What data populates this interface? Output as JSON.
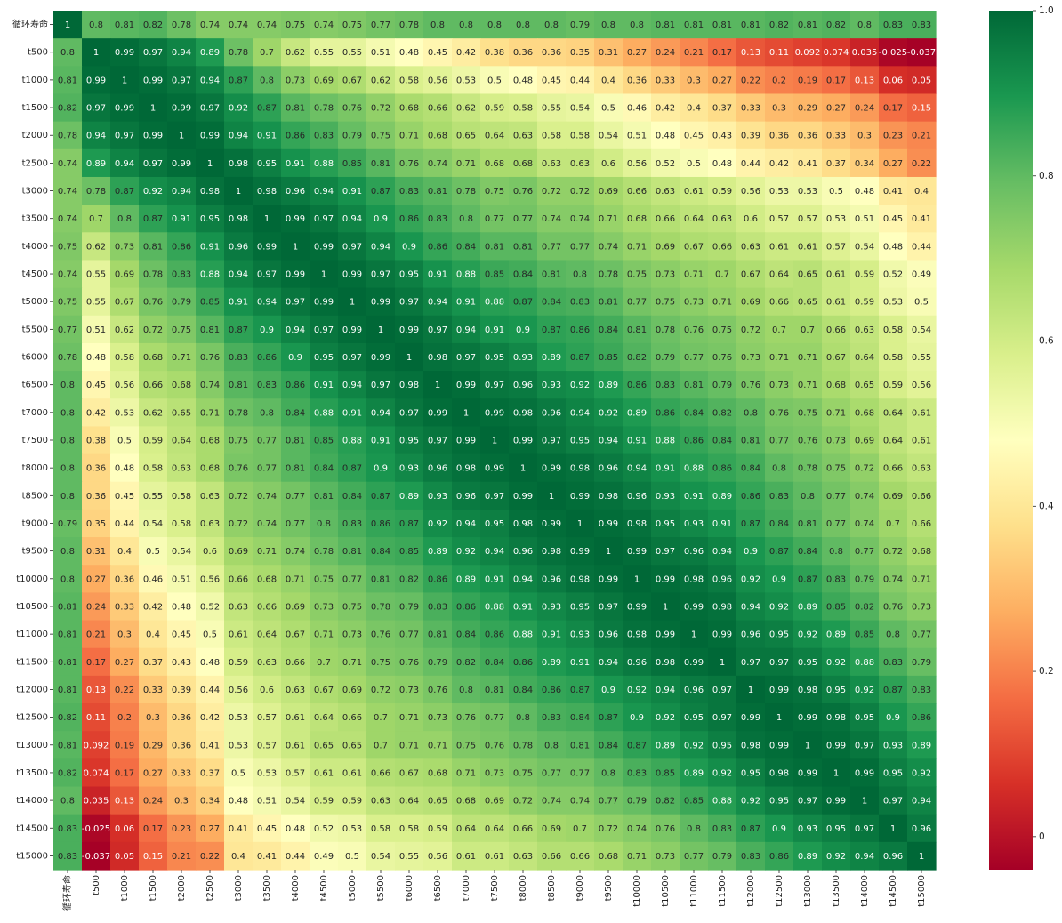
{
  "chart_data": {
    "type": "heatmap",
    "title": "",
    "xlabel": "",
    "ylabel": "",
    "colormap": "RdYlGn",
    "vmin": -0.04,
    "vmax": 1.0,
    "colorbar_ticks": [
      0.0,
      0.2,
      0.4,
      0.6,
      0.8,
      1.0
    ],
    "colorbar_tick_labels": [
      "0",
      "0.2",
      "0.4",
      "0.6",
      "0.8",
      "1.0"
    ],
    "labels": [
      "循环寿命",
      "t500",
      "t1000",
      "t1500",
      "t2000",
      "t2500",
      "t3000",
      "t3500",
      "t4000",
      "t4500",
      "t5000",
      "t5500",
      "t6000",
      "t6500",
      "t7000",
      "t7500",
      "t8000",
      "t8500",
      "t9000",
      "t9500",
      "t10000",
      "t10500",
      "t11000",
      "t11500",
      "t12000",
      "t12500",
      "t13000",
      "t13500",
      "t14000",
      "t14500",
      "t15000"
    ],
    "matrix": [
      [
        "1",
        "0.8",
        "0.81",
        "0.82",
        "0.78",
        "0.74",
        "0.74",
        "0.74",
        "0.75",
        "0.74",
        "0.75",
        "0.77",
        "0.78",
        "0.8",
        "0.8",
        "0.8",
        "0.8",
        "0.8",
        "0.79",
        "0.8",
        "0.8",
        "0.81",
        "0.81",
        "0.81",
        "0.81",
        "0.82",
        "0.81",
        "0.82",
        "0.8",
        "0.83",
        "0.83"
      ],
      [
        "0.8",
        "1",
        "0.99",
        "0.97",
        "0.94",
        "0.89",
        "0.78",
        "0.7",
        "0.62",
        "0.55",
        "0.55",
        "0.51",
        "0.48",
        "0.45",
        "0.42",
        "0.38",
        "0.36",
        "0.36",
        "0.35",
        "0.31",
        "0.27",
        "0.24",
        "0.21",
        "0.17",
        "0.13",
        "0.11",
        "0.092",
        "0.074",
        "0.035",
        "-0.025",
        "-0.037"
      ],
      [
        "0.81",
        "0.99",
        "1",
        "0.99",
        "0.97",
        "0.94",
        "0.87",
        "0.8",
        "0.73",
        "0.69",
        "0.67",
        "0.62",
        "0.58",
        "0.56",
        "0.53",
        "0.5",
        "0.48",
        "0.45",
        "0.44",
        "0.4",
        "0.36",
        "0.33",
        "0.3",
        "0.27",
        "0.22",
        "0.2",
        "0.19",
        "0.17",
        "0.13",
        "0.06",
        "0.05"
      ],
      [
        "0.82",
        "0.97",
        "0.99",
        "1",
        "0.99",
        "0.97",
        "0.92",
        "0.87",
        "0.81",
        "0.78",
        "0.76",
        "0.72",
        "0.68",
        "0.66",
        "0.62",
        "0.59",
        "0.58",
        "0.55",
        "0.54",
        "0.5",
        "0.46",
        "0.42",
        "0.4",
        "0.37",
        "0.33",
        "0.3",
        "0.29",
        "0.27",
        "0.24",
        "0.17",
        "0.15"
      ],
      [
        "0.78",
        "0.94",
        "0.97",
        "0.99",
        "1",
        "0.99",
        "0.94",
        "0.91",
        "0.86",
        "0.83",
        "0.79",
        "0.75",
        "0.71",
        "0.68",
        "0.65",
        "0.64",
        "0.63",
        "0.58",
        "0.58",
        "0.54",
        "0.51",
        "0.48",
        "0.45",
        "0.43",
        "0.39",
        "0.36",
        "0.36",
        "0.33",
        "0.3",
        "0.23",
        "0.21"
      ],
      [
        "0.74",
        "0.89",
        "0.94",
        "0.97",
        "0.99",
        "1",
        "0.98",
        "0.95",
        "0.91",
        "0.88",
        "0.85",
        "0.81",
        "0.76",
        "0.74",
        "0.71",
        "0.68",
        "0.68",
        "0.63",
        "0.63",
        "0.6",
        "0.56",
        "0.52",
        "0.5",
        "0.48",
        "0.44",
        "0.42",
        "0.41",
        "0.37",
        "0.34",
        "0.27",
        "0.22"
      ],
      [
        "0.74",
        "0.78",
        "0.87",
        "0.92",
        "0.94",
        "0.98",
        "1",
        "0.98",
        "0.96",
        "0.94",
        "0.91",
        "0.87",
        "0.83",
        "0.81",
        "0.78",
        "0.75",
        "0.76",
        "0.72",
        "0.72",
        "0.69",
        "0.66",
        "0.63",
        "0.61",
        "0.59",
        "0.56",
        "0.53",
        "0.53",
        "0.5",
        "0.48",
        "0.41",
        "0.4"
      ],
      [
        "0.74",
        "0.7",
        "0.8",
        "0.87",
        "0.91",
        "0.95",
        "0.98",
        "1",
        "0.99",
        "0.97",
        "0.94",
        "0.9",
        "0.86",
        "0.83",
        "0.8",
        "0.77",
        "0.77",
        "0.74",
        "0.74",
        "0.71",
        "0.68",
        "0.66",
        "0.64",
        "0.63",
        "0.6",
        "0.57",
        "0.57",
        "0.53",
        "0.51",
        "0.45",
        "0.41"
      ],
      [
        "0.75",
        "0.62",
        "0.73",
        "0.81",
        "0.86",
        "0.91",
        "0.96",
        "0.99",
        "1",
        "0.99",
        "0.97",
        "0.94",
        "0.9",
        "0.86",
        "0.84",
        "0.81",
        "0.81",
        "0.77",
        "0.77",
        "0.74",
        "0.71",
        "0.69",
        "0.67",
        "0.66",
        "0.63",
        "0.61",
        "0.61",
        "0.57",
        "0.54",
        "0.48",
        "0.44"
      ],
      [
        "0.74",
        "0.55",
        "0.69",
        "0.78",
        "0.83",
        "0.88",
        "0.94",
        "0.97",
        "0.99",
        "1",
        "0.99",
        "0.97",
        "0.95",
        "0.91",
        "0.88",
        "0.85",
        "0.84",
        "0.81",
        "0.8",
        "0.78",
        "0.75",
        "0.73",
        "0.71",
        "0.7",
        "0.67",
        "0.64",
        "0.65",
        "0.61",
        "0.59",
        "0.52",
        "0.49"
      ],
      [
        "0.75",
        "0.55",
        "0.67",
        "0.76",
        "0.79",
        "0.85",
        "0.91",
        "0.94",
        "0.97",
        "0.99",
        "1",
        "0.99",
        "0.97",
        "0.94",
        "0.91",
        "0.88",
        "0.87",
        "0.84",
        "0.83",
        "0.81",
        "0.77",
        "0.75",
        "0.73",
        "0.71",
        "0.69",
        "0.66",
        "0.65",
        "0.61",
        "0.59",
        "0.53",
        "0.5"
      ],
      [
        "0.77",
        "0.51",
        "0.62",
        "0.72",
        "0.75",
        "0.81",
        "0.87",
        "0.9",
        "0.94",
        "0.97",
        "0.99",
        "1",
        "0.99",
        "0.97",
        "0.94",
        "0.91",
        "0.9",
        "0.87",
        "0.86",
        "0.84",
        "0.81",
        "0.78",
        "0.76",
        "0.75",
        "0.72",
        "0.7",
        "0.7",
        "0.66",
        "0.63",
        "0.58",
        "0.54"
      ],
      [
        "0.78",
        "0.48",
        "0.58",
        "0.68",
        "0.71",
        "0.76",
        "0.83",
        "0.86",
        "0.9",
        "0.95",
        "0.97",
        "0.99",
        "1",
        "0.98",
        "0.97",
        "0.95",
        "0.93",
        "0.89",
        "0.87",
        "0.85",
        "0.82",
        "0.79",
        "0.77",
        "0.76",
        "0.73",
        "0.71",
        "0.71",
        "0.67",
        "0.64",
        "0.58",
        "0.55"
      ],
      [
        "0.8",
        "0.45",
        "0.56",
        "0.66",
        "0.68",
        "0.74",
        "0.81",
        "0.83",
        "0.86",
        "0.91",
        "0.94",
        "0.97",
        "0.98",
        "1",
        "0.99",
        "0.97",
        "0.96",
        "0.93",
        "0.92",
        "0.89",
        "0.86",
        "0.83",
        "0.81",
        "0.79",
        "0.76",
        "0.73",
        "0.71",
        "0.68",
        "0.65",
        "0.59",
        "0.56"
      ],
      [
        "0.8",
        "0.42",
        "0.53",
        "0.62",
        "0.65",
        "0.71",
        "0.78",
        "0.8",
        "0.84",
        "0.88",
        "0.91",
        "0.94",
        "0.97",
        "0.99",
        "1",
        "0.99",
        "0.98",
        "0.96",
        "0.94",
        "0.92",
        "0.89",
        "0.86",
        "0.84",
        "0.82",
        "0.8",
        "0.76",
        "0.75",
        "0.71",
        "0.68",
        "0.64",
        "0.61"
      ],
      [
        "0.8",
        "0.38",
        "0.5",
        "0.59",
        "0.64",
        "0.68",
        "0.75",
        "0.77",
        "0.81",
        "0.85",
        "0.88",
        "0.91",
        "0.95",
        "0.97",
        "0.99",
        "1",
        "0.99",
        "0.97",
        "0.95",
        "0.94",
        "0.91",
        "0.88",
        "0.86",
        "0.84",
        "0.81",
        "0.77",
        "0.76",
        "0.73",
        "0.69",
        "0.64",
        "0.61"
      ],
      [
        "0.8",
        "0.36",
        "0.48",
        "0.58",
        "0.63",
        "0.68",
        "0.76",
        "0.77",
        "0.81",
        "0.84",
        "0.87",
        "0.9",
        "0.93",
        "0.96",
        "0.98",
        "0.99",
        "1",
        "0.99",
        "0.98",
        "0.96",
        "0.94",
        "0.91",
        "0.88",
        "0.86",
        "0.84",
        "0.8",
        "0.78",
        "0.75",
        "0.72",
        "0.66",
        "0.63"
      ],
      [
        "0.8",
        "0.36",
        "0.45",
        "0.55",
        "0.58",
        "0.63",
        "0.72",
        "0.74",
        "0.77",
        "0.81",
        "0.84",
        "0.87",
        "0.89",
        "0.93",
        "0.96",
        "0.97",
        "0.99",
        "1",
        "0.99",
        "0.98",
        "0.96",
        "0.93",
        "0.91",
        "0.89",
        "0.86",
        "0.83",
        "0.8",
        "0.77",
        "0.74",
        "0.69",
        "0.66"
      ],
      [
        "0.79",
        "0.35",
        "0.44",
        "0.54",
        "0.58",
        "0.63",
        "0.72",
        "0.74",
        "0.77",
        "0.8",
        "0.83",
        "0.86",
        "0.87",
        "0.92",
        "0.94",
        "0.95",
        "0.98",
        "0.99",
        "1",
        "0.99",
        "0.98",
        "0.95",
        "0.93",
        "0.91",
        "0.87",
        "0.84",
        "0.81",
        "0.77",
        "0.74",
        "0.7",
        "0.66"
      ],
      [
        "0.8",
        "0.31",
        "0.4",
        "0.5",
        "0.54",
        "0.6",
        "0.69",
        "0.71",
        "0.74",
        "0.78",
        "0.81",
        "0.84",
        "0.85",
        "0.89",
        "0.92",
        "0.94",
        "0.96",
        "0.98",
        "0.99",
        "1",
        "0.99",
        "0.97",
        "0.96",
        "0.94",
        "0.9",
        "0.87",
        "0.84",
        "0.8",
        "0.77",
        "0.72",
        "0.68"
      ],
      [
        "0.8",
        "0.27",
        "0.36",
        "0.46",
        "0.51",
        "0.56",
        "0.66",
        "0.68",
        "0.71",
        "0.75",
        "0.77",
        "0.81",
        "0.82",
        "0.86",
        "0.89",
        "0.91",
        "0.94",
        "0.96",
        "0.98",
        "0.99",
        "1",
        "0.99",
        "0.98",
        "0.96",
        "0.92",
        "0.9",
        "0.87",
        "0.83",
        "0.79",
        "0.74",
        "0.71"
      ],
      [
        "0.81",
        "0.24",
        "0.33",
        "0.42",
        "0.48",
        "0.52",
        "0.63",
        "0.66",
        "0.69",
        "0.73",
        "0.75",
        "0.78",
        "0.79",
        "0.83",
        "0.86",
        "0.88",
        "0.91",
        "0.93",
        "0.95",
        "0.97",
        "0.99",
        "1",
        "0.99",
        "0.98",
        "0.94",
        "0.92",
        "0.89",
        "0.85",
        "0.82",
        "0.76",
        "0.73"
      ],
      [
        "0.81",
        "0.21",
        "0.3",
        "0.4",
        "0.45",
        "0.5",
        "0.61",
        "0.64",
        "0.67",
        "0.71",
        "0.73",
        "0.76",
        "0.77",
        "0.81",
        "0.84",
        "0.86",
        "0.88",
        "0.91",
        "0.93",
        "0.96",
        "0.98",
        "0.99",
        "1",
        "0.99",
        "0.96",
        "0.95",
        "0.92",
        "0.89",
        "0.85",
        "0.8",
        "0.77"
      ],
      [
        "0.81",
        "0.17",
        "0.27",
        "0.37",
        "0.43",
        "0.48",
        "0.59",
        "0.63",
        "0.66",
        "0.7",
        "0.71",
        "0.75",
        "0.76",
        "0.79",
        "0.82",
        "0.84",
        "0.86",
        "0.89",
        "0.91",
        "0.94",
        "0.96",
        "0.98",
        "0.99",
        "1",
        "0.97",
        "0.97",
        "0.95",
        "0.92",
        "0.88",
        "0.83",
        "0.79"
      ],
      [
        "0.81",
        "0.13",
        "0.22",
        "0.33",
        "0.39",
        "0.44",
        "0.56",
        "0.6",
        "0.63",
        "0.67",
        "0.69",
        "0.72",
        "0.73",
        "0.76",
        "0.8",
        "0.81",
        "0.84",
        "0.86",
        "0.87",
        "0.9",
        "0.92",
        "0.94",
        "0.96",
        "0.97",
        "1",
        "0.99",
        "0.98",
        "0.95",
        "0.92",
        "0.87",
        "0.83"
      ],
      [
        "0.82",
        "0.11",
        "0.2",
        "0.3",
        "0.36",
        "0.42",
        "0.53",
        "0.57",
        "0.61",
        "0.64",
        "0.66",
        "0.7",
        "0.71",
        "0.73",
        "0.76",
        "0.77",
        "0.8",
        "0.83",
        "0.84",
        "0.87",
        "0.9",
        "0.92",
        "0.95",
        "0.97",
        "0.99",
        "1",
        "0.99",
        "0.98",
        "0.95",
        "0.9",
        "0.86"
      ],
      [
        "0.81",
        "0.092",
        "0.19",
        "0.29",
        "0.36",
        "0.41",
        "0.53",
        "0.57",
        "0.61",
        "0.65",
        "0.65",
        "0.7",
        "0.71",
        "0.71",
        "0.75",
        "0.76",
        "0.78",
        "0.8",
        "0.81",
        "0.84",
        "0.87",
        "0.89",
        "0.92",
        "0.95",
        "0.98",
        "0.99",
        "1",
        "0.99",
        "0.97",
        "0.93",
        "0.89"
      ],
      [
        "0.82",
        "0.074",
        "0.17",
        "0.27",
        "0.33",
        "0.37",
        "0.5",
        "0.53",
        "0.57",
        "0.61",
        "0.61",
        "0.66",
        "0.67",
        "0.68",
        "0.71",
        "0.73",
        "0.75",
        "0.77",
        "0.77",
        "0.8",
        "0.83",
        "0.85",
        "0.89",
        "0.92",
        "0.95",
        "0.98",
        "0.99",
        "1",
        "0.99",
        "0.95",
        "0.92"
      ],
      [
        "0.8",
        "0.035",
        "0.13",
        "0.24",
        "0.3",
        "0.34",
        "0.48",
        "0.51",
        "0.54",
        "0.59",
        "0.59",
        "0.63",
        "0.64",
        "0.65",
        "0.68",
        "0.69",
        "0.72",
        "0.74",
        "0.74",
        "0.77",
        "0.79",
        "0.82",
        "0.85",
        "0.88",
        "0.92",
        "0.95",
        "0.97",
        "0.99",
        "1",
        "0.97",
        "0.94"
      ],
      [
        "0.83",
        "-0.025",
        "0.06",
        "0.17",
        "0.23",
        "0.27",
        "0.41",
        "0.45",
        "0.48",
        "0.52",
        "0.53",
        "0.58",
        "0.58",
        "0.59",
        "0.64",
        "0.64",
        "0.66",
        "0.69",
        "0.7",
        "0.72",
        "0.74",
        "0.76",
        "0.8",
        "0.83",
        "0.87",
        "0.9",
        "0.93",
        "0.95",
        "0.97",
        "1",
        "0.96"
      ],
      [
        "0.83",
        "-0.037",
        "0.05",
        "0.15",
        "0.21",
        "0.22",
        "0.4",
        "0.41",
        "0.44",
        "0.49",
        "0.5",
        "0.54",
        "0.55",
        "0.56",
        "0.61",
        "0.61",
        "0.63",
        "0.66",
        "0.66",
        "0.68",
        "0.71",
        "0.73",
        "0.77",
        "0.79",
        "0.83",
        "0.86",
        "0.89",
        "0.92",
        "0.94",
        "0.96",
        "1"
      ]
    ]
  }
}
